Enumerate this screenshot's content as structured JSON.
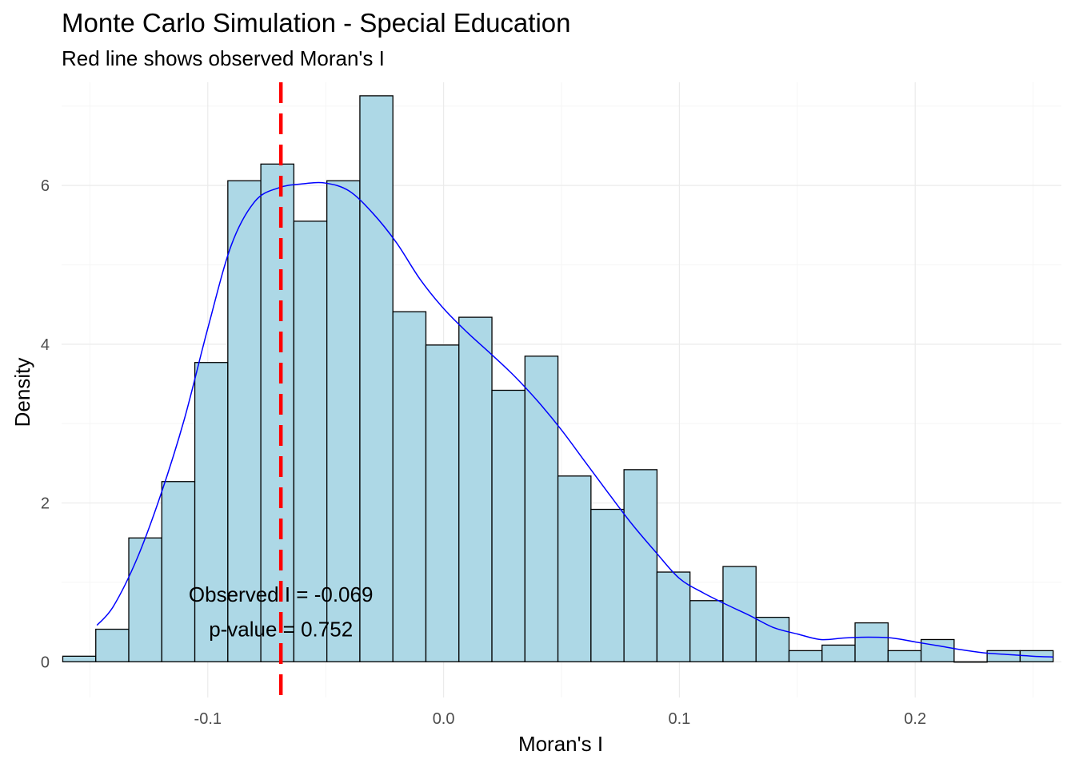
{
  "chart_data": {
    "type": "bar",
    "title": "Monte Carlo Simulation - Special Education",
    "subtitle": "Red line shows observed Moran's I",
    "xlabel": "Moran's I",
    "ylabel": "Density",
    "xlim": [
      -0.162,
      0.262
    ],
    "ylim": [
      -0.45,
      7.3
    ],
    "x_ticks": [
      {
        "value": -0.1,
        "label": "-0.1"
      },
      {
        "value": 0.0,
        "label": "0.0"
      },
      {
        "value": 0.1,
        "label": "0.1"
      },
      {
        "value": 0.2,
        "label": "0.2"
      }
    ],
    "y_ticks": [
      {
        "value": 0,
        "label": "0"
      },
      {
        "value": 2,
        "label": "2"
      },
      {
        "value": 4,
        "label": "4"
      },
      {
        "value": 6,
        "label": "6"
      }
    ],
    "grid": true,
    "bins": [
      {
        "x0": -0.1615,
        "x1": -0.1475,
        "density": 0.07
      },
      {
        "x0": -0.1475,
        "x1": -0.1335,
        "density": 0.41
      },
      {
        "x0": -0.1335,
        "x1": -0.1195,
        "density": 1.56
      },
      {
        "x0": -0.1195,
        "x1": -0.1055,
        "density": 2.27
      },
      {
        "x0": -0.1055,
        "x1": -0.0915,
        "density": 3.77
      },
      {
        "x0": -0.0915,
        "x1": -0.0775,
        "density": 6.06
      },
      {
        "x0": -0.0775,
        "x1": -0.0635,
        "density": 6.27
      },
      {
        "x0": -0.0635,
        "x1": -0.0495,
        "density": 5.55
      },
      {
        "x0": -0.0495,
        "x1": -0.0355,
        "density": 6.06
      },
      {
        "x0": -0.0355,
        "x1": -0.0215,
        "density": 7.13
      },
      {
        "x0": -0.0215,
        "x1": -0.0075,
        "density": 4.41
      },
      {
        "x0": -0.0075,
        "x1": 0.0065,
        "density": 3.99
      },
      {
        "x0": 0.0065,
        "x1": 0.0205,
        "density": 4.34
      },
      {
        "x0": 0.0205,
        "x1": 0.0345,
        "density": 3.42
      },
      {
        "x0": 0.0345,
        "x1": 0.0485,
        "density": 3.85
      },
      {
        "x0": 0.0485,
        "x1": 0.0625,
        "density": 2.34
      },
      {
        "x0": 0.0625,
        "x1": 0.0765,
        "density": 1.92
      },
      {
        "x0": 0.0765,
        "x1": 0.0905,
        "density": 2.42
      },
      {
        "x0": 0.0905,
        "x1": 0.1045,
        "density": 1.13
      },
      {
        "x0": 0.1045,
        "x1": 0.1185,
        "density": 0.77
      },
      {
        "x0": 0.1185,
        "x1": 0.1325,
        "density": 1.2
      },
      {
        "x0": 0.1325,
        "x1": 0.1465,
        "density": 0.56
      },
      {
        "x0": 0.1465,
        "x1": 0.1605,
        "density": 0.14
      },
      {
        "x0": 0.1605,
        "x1": 0.1745,
        "density": 0.21
      },
      {
        "x0": 0.1745,
        "x1": 0.1885,
        "density": 0.49
      },
      {
        "x0": 0.1885,
        "x1": 0.2025,
        "density": 0.14
      },
      {
        "x0": 0.2025,
        "x1": 0.2165,
        "density": 0.28
      },
      {
        "x0": 0.2165,
        "x1": 0.2305,
        "density": 0.0
      },
      {
        "x0": 0.2305,
        "x1": 0.2445,
        "density": 0.14
      },
      {
        "x0": 0.2445,
        "x1": 0.2585,
        "density": 0.14
      }
    ],
    "density_curve": [
      {
        "x": -0.147,
        "y": 0.46
      },
      {
        "x": -0.14,
        "y": 0.7
      },
      {
        "x": -0.13,
        "y": 1.3
      },
      {
        "x": -0.12,
        "y": 2.1
      },
      {
        "x": -0.11,
        "y": 3.05
      },
      {
        "x": -0.1,
        "y": 4.2
      },
      {
        "x": -0.09,
        "y": 5.25
      },
      {
        "x": -0.08,
        "y": 5.8
      },
      {
        "x": -0.07,
        "y": 5.97
      },
      {
        "x": -0.06,
        "y": 6.02
      },
      {
        "x": -0.05,
        "y": 6.03
      },
      {
        "x": -0.04,
        "y": 5.93
      },
      {
        "x": -0.03,
        "y": 5.65
      },
      {
        "x": -0.02,
        "y": 5.28
      },
      {
        "x": -0.01,
        "y": 4.82
      },
      {
        "x": 0.0,
        "y": 4.45
      },
      {
        "x": 0.01,
        "y": 4.15
      },
      {
        "x": 0.02,
        "y": 3.88
      },
      {
        "x": 0.03,
        "y": 3.6
      },
      {
        "x": 0.04,
        "y": 3.28
      },
      {
        "x": 0.05,
        "y": 2.92
      },
      {
        "x": 0.06,
        "y": 2.52
      },
      {
        "x": 0.07,
        "y": 2.12
      },
      {
        "x": 0.08,
        "y": 1.73
      },
      {
        "x": 0.09,
        "y": 1.38
      },
      {
        "x": 0.1,
        "y": 1.05
      },
      {
        "x": 0.11,
        "y": 0.87
      },
      {
        "x": 0.12,
        "y": 0.72
      },
      {
        "x": 0.13,
        "y": 0.58
      },
      {
        "x": 0.14,
        "y": 0.43
      },
      {
        "x": 0.15,
        "y": 0.35
      },
      {
        "x": 0.16,
        "y": 0.28
      },
      {
        "x": 0.17,
        "y": 0.3
      },
      {
        "x": 0.18,
        "y": 0.31
      },
      {
        "x": 0.19,
        "y": 0.3
      },
      {
        "x": 0.2,
        "y": 0.25
      },
      {
        "x": 0.21,
        "y": 0.2
      },
      {
        "x": 0.22,
        "y": 0.15
      },
      {
        "x": 0.23,
        "y": 0.11
      },
      {
        "x": 0.24,
        "y": 0.09
      },
      {
        "x": 0.25,
        "y": 0.07
      },
      {
        "x": 0.2585,
        "y": 0.06
      }
    ],
    "observed_line": {
      "x": -0.069
    },
    "annotations": {
      "observed": {
        "text": "Observed I = -0.069",
        "x": -0.069,
        "y": 0.85
      },
      "pvalue": {
        "text": "p-value = 0.752",
        "x": -0.069,
        "y": 0.41
      }
    },
    "colors": {
      "bar_fill": "#add8e6",
      "bar_stroke": "#000000",
      "density_line": "#0000ff",
      "observed_line": "#ff0000",
      "grid_major": "#ebebeb",
      "grid_minor": "#f5f5f5"
    }
  }
}
